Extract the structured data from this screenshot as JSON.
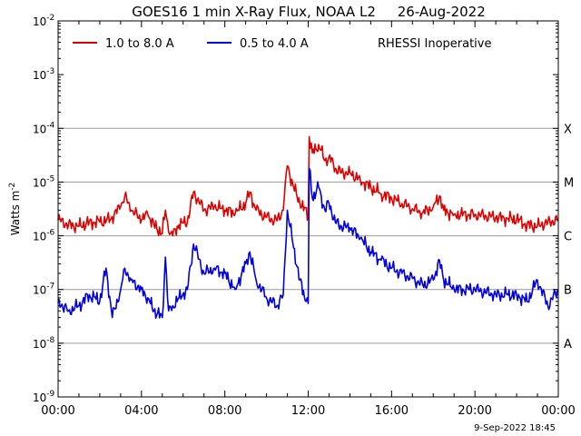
{
  "chart_data": {
    "type": "line",
    "title": "GOES16 1 min X-Ray Flux, NOAA L2     26-Aug-2022",
    "ylabel": "Watts m",
    "ylabel_sup": "-2",
    "yscale": "log",
    "ylim": [
      1e-09,
      0.01
    ],
    "y_ticks": [
      {
        "base": "10",
        "exp": "-9",
        "value": 1e-09
      },
      {
        "base": "10",
        "exp": "-8",
        "value": 1e-08
      },
      {
        "base": "10",
        "exp": "-7",
        "value": 1e-07
      },
      {
        "base": "10",
        "exp": "-6",
        "value": 1e-06
      },
      {
        "base": "10",
        "exp": "-5",
        "value": 1e-05
      },
      {
        "base": "10",
        "exp": "-4",
        "value": 0.0001
      },
      {
        "base": "10",
        "exp": "-3",
        "value": 0.001
      },
      {
        "base": "10",
        "exp": "-2",
        "value": 0.01
      }
    ],
    "x_ticks": [
      "00:00",
      "04:00",
      "08:00",
      "12:00",
      "16:00",
      "20:00",
      "00:00"
    ],
    "xlim_hours": [
      0,
      24
    ],
    "flare_classes": [
      {
        "label": "X",
        "value": 0.0001
      },
      {
        "label": "M",
        "value": 1e-05
      },
      {
        "label": "C",
        "value": 1e-06
      },
      {
        "label": "B",
        "value": 1e-07
      },
      {
        "label": "A",
        "value": 1e-08
      }
    ],
    "annotation": "RHESSI Inoperative",
    "footer": "9-Sep-2022 18:45",
    "legend_position": "top-left",
    "grid": true,
    "series": [
      {
        "name": "1.0 to 8.0 A",
        "color": "#e00000",
        "x": [
          0,
          0.5,
          1,
          1.5,
          2,
          2.5,
          3,
          3.2,
          3.5,
          4,
          4.3,
          4.6,
          5,
          5.15,
          5.3,
          5.5,
          5.8,
          6.2,
          6.5,
          7,
          7.5,
          8,
          8.5,
          9,
          9.2,
          9.5,
          10,
          10.5,
          10.8,
          11,
          11.3,
          11.6,
          12,
          12.05,
          12.2,
          12.5,
          12.8,
          13,
          13.3,
          13.6,
          14,
          14.5,
          15,
          15.5,
          16,
          16.5,
          17,
          17.5,
          18,
          18.3,
          18.5,
          19,
          20,
          21,
          22,
          22.5,
          23,
          23.5,
          24
        ],
        "y": [
          2e-06,
          1.6e-06,
          1.5e-06,
          1.8e-06,
          1.8e-06,
          2e-06,
          3.5e-06,
          5.5e-06,
          3e-06,
          2e-06,
          2.5e-06,
          1.6e-06,
          1.1e-06,
          3e-06,
          1.2e-06,
          1e-06,
          1.6e-06,
          1.8e-06,
          6.5e-06,
          3e-06,
          3.5e-06,
          3e-06,
          2.6e-06,
          4e-06,
          6.5e-06,
          3e-06,
          2.2e-06,
          1.9e-06,
          3e-06,
          2e-05,
          8e-06,
          4e-06,
          2.5e-06,
          7e-05,
          3.5e-05,
          5e-05,
          2.5e-05,
          3e-05,
          1.8e-05,
          1.5e-05,
          1.5e-05,
          1.1e-05,
          8e-06,
          6e-06,
          5e-06,
          4e-06,
          3.2e-06,
          2.7e-06,
          3.5e-06,
          5.5e-06,
          3e-06,
          2.5e-06,
          2.5e-06,
          2.2e-06,
          2e-06,
          1.6e-06,
          1.5e-06,
          1.8e-06,
          2e-06
        ]
      },
      {
        "name": "0.5 to 4.0 A",
        "color": "#0000e0",
        "x": [
          0,
          0.5,
          1,
          1.5,
          2,
          2.3,
          2.6,
          3,
          3.2,
          3.5,
          4,
          4.3,
          4.6,
          5,
          5.15,
          5.3,
          5.5,
          5.8,
          6.2,
          6.5,
          7,
          7.5,
          8,
          8.5,
          9,
          9.2,
          9.5,
          10,
          10.5,
          10.8,
          11,
          11.3,
          11.6,
          11.9,
          12,
          12.05,
          12.2,
          12.5,
          12.8,
          13,
          13.3,
          13.6,
          14,
          14.5,
          15,
          15.5,
          16,
          16.5,
          17,
          17.5,
          18,
          18.3,
          18.5,
          19,
          20,
          21,
          22,
          22.5,
          23,
          23.5,
          24
        ],
        "y": [
          6e-08,
          4e-08,
          5e-08,
          8e-08,
          6e-08,
          2.5e-07,
          3e-08,
          1e-07,
          2.5e-07,
          1.5e-07,
          1e-07,
          7e-08,
          4e-08,
          3e-08,
          4e-07,
          4e-08,
          5e-08,
          7e-08,
          1e-07,
          7e-07,
          2e-07,
          2.5e-07,
          2e-07,
          1e-07,
          3e-07,
          5e-07,
          1.5e-07,
          7e-08,
          5e-08,
          8e-08,
          3e-06,
          6e-07,
          1.5e-07,
          6e-08,
          5.5e-08,
          1.8e-05,
          5e-06,
          8e-06,
          3e-06,
          4e-06,
          1.8e-06,
          1.5e-06,
          1.4e-06,
          9e-07,
          5e-07,
          3.5e-07,
          2.5e-07,
          2e-07,
          1.6e-07,
          1.2e-07,
          1.5e-07,
          3.5e-07,
          1.5e-07,
          1e-07,
          1e-07,
          8e-08,
          8e-08,
          6e-08,
          1.5e-07,
          5e-08,
          1e-07
        ]
      }
    ]
  }
}
